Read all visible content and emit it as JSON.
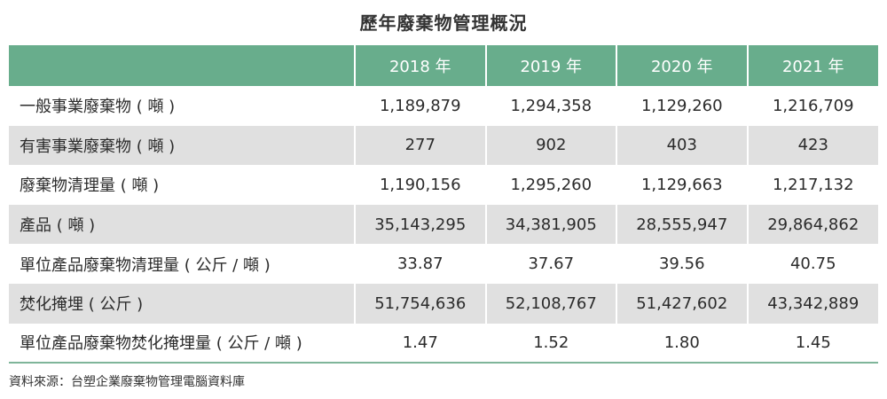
{
  "title": "歷年廢棄物管理概況",
  "table": {
    "headers": [
      "",
      "2018 年",
      "2019 年",
      "2020 年",
      "2021 年"
    ],
    "rows": [
      {
        "label": "一般事業廢棄物 ( 噸 )",
        "values": [
          "1,189,879",
          "1,294,358",
          "1,129,260",
          "1,216,709"
        ]
      },
      {
        "label": "有害事業廢棄物 ( 噸 )",
        "values": [
          "277",
          "902",
          "403",
          "423"
        ]
      },
      {
        "label": "廢棄物清理量 ( 噸 )",
        "values": [
          "1,190,156",
          "1,295,260",
          "1,129,663",
          "1,217,132"
        ]
      },
      {
        "label": "產品 ( 噸 )",
        "values": [
          "35,143,295",
          "34,381,905",
          "28,555,947",
          "29,864,862"
        ]
      },
      {
        "label": "單位產品廢棄物清理量 ( 公斤 / 噸 )",
        "values": [
          "33.87",
          "37.67",
          "39.56",
          "40.75"
        ]
      },
      {
        "label": "焚化掩埋 ( 公斤 )",
        "values": [
          "51,754,636",
          "52,108,767",
          "51,427,602",
          "43,342,889"
        ]
      },
      {
        "label": "單位產品廢棄物焚化掩埋量 ( 公斤 / 噸 )",
        "values": [
          "1.47",
          "1.52",
          "1.80",
          "1.45"
        ]
      }
    ]
  },
  "source": "資料來源：台塑企業廢棄物管理電腦資料庫",
  "colors": {
    "header_bg": "#68ad8c",
    "stripe_bg": "#e0e0e0",
    "bottom_rule": "#7fb59a"
  }
}
